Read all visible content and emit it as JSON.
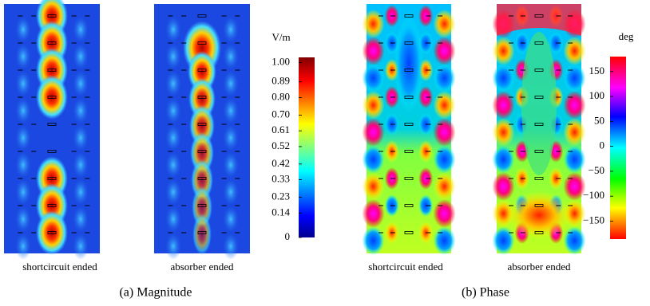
{
  "subfigures": [
    {
      "caption": "(a) Magnitude",
      "plots": [
        {
          "label": "shortcircuit ended"
        },
        {
          "label": "absorber ended"
        }
      ],
      "colorbar": {
        "unit": "V/m",
        "ticks": [
          "1.00",
          "0.89",
          "0.80",
          "0.70",
          "0.61",
          "0.52",
          "0.42",
          "0.33",
          "0.23",
          "0.14",
          "0"
        ]
      }
    },
    {
      "caption": "(b) Phase",
      "plots": [
        {
          "label": "shortcircuit ended"
        },
        {
          "label": "absorber ended"
        }
      ],
      "colorbar": {
        "unit": "deg",
        "ticks": [
          "150",
          "100",
          "50",
          "0",
          "−50",
          "−100",
          "−150"
        ]
      }
    }
  ]
}
